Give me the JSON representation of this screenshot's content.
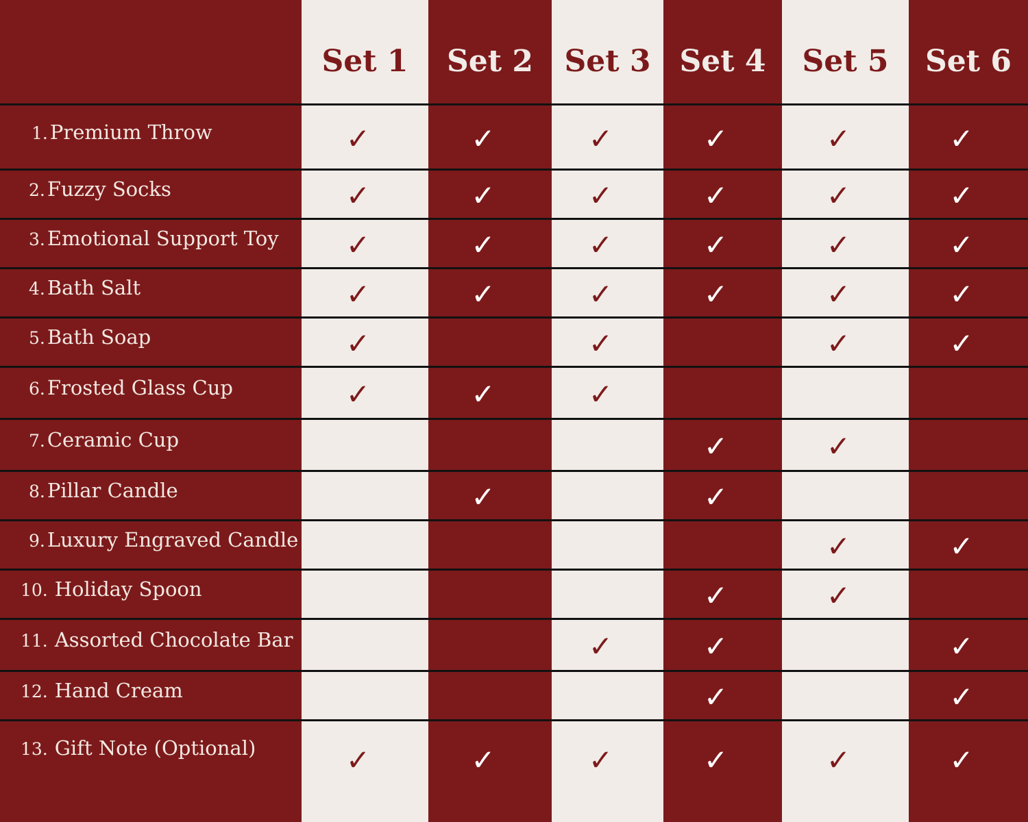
{
  "colors": {
    "dark": "#7c1a1b",
    "light": "#f1ece8",
    "divider": "#111111"
  },
  "check_icon": "checkmark-icon",
  "sets": [
    "Set 1",
    "Set 2",
    "Set 3",
    "Set 4",
    "Set 5",
    "Set 6"
  ],
  "items": [
    {
      "num": "1.",
      "name": "Premium Throw",
      "included": [
        true,
        true,
        true,
        true,
        true,
        true
      ]
    },
    {
      "num": "2.",
      "name": "Fuzzy Socks",
      "included": [
        true,
        true,
        true,
        true,
        true,
        true
      ]
    },
    {
      "num": "3.",
      "name": "Emotional Support Toy",
      "included": [
        true,
        true,
        true,
        true,
        true,
        true
      ]
    },
    {
      "num": "4.",
      "name": "Bath Salt",
      "included": [
        true,
        true,
        true,
        true,
        true,
        true
      ]
    },
    {
      "num": "5.",
      "name": "Bath Soap",
      "included": [
        true,
        false,
        true,
        false,
        true,
        true
      ]
    },
    {
      "num": "6.",
      "name": "Frosted Glass Cup",
      "included": [
        true,
        true,
        true,
        false,
        false,
        false
      ]
    },
    {
      "num": "7.",
      "name": "Ceramic Cup",
      "included": [
        false,
        false,
        false,
        true,
        true,
        false
      ]
    },
    {
      "num": "8.",
      "name": "Pillar Candle",
      "included": [
        false,
        true,
        false,
        true,
        false,
        false
      ]
    },
    {
      "num": "9.",
      "name": "Luxury Engraved Candle",
      "included": [
        false,
        false,
        false,
        false,
        true,
        true
      ]
    },
    {
      "num": "10.",
      "name": "Holiday Spoon",
      "included": [
        false,
        false,
        false,
        true,
        true,
        false
      ]
    },
    {
      "num": "11.",
      "name": "Assorted Chocolate Bar",
      "included": [
        false,
        false,
        true,
        true,
        false,
        true
      ]
    },
    {
      "num": "12.",
      "name": "Hand Cream",
      "included": [
        false,
        false,
        false,
        true,
        false,
        true
      ]
    },
    {
      "num": "13.",
      "name": "Gift Note (Optional)",
      "included": [
        true,
        true,
        true,
        true,
        true,
        true
      ]
    }
  ]
}
